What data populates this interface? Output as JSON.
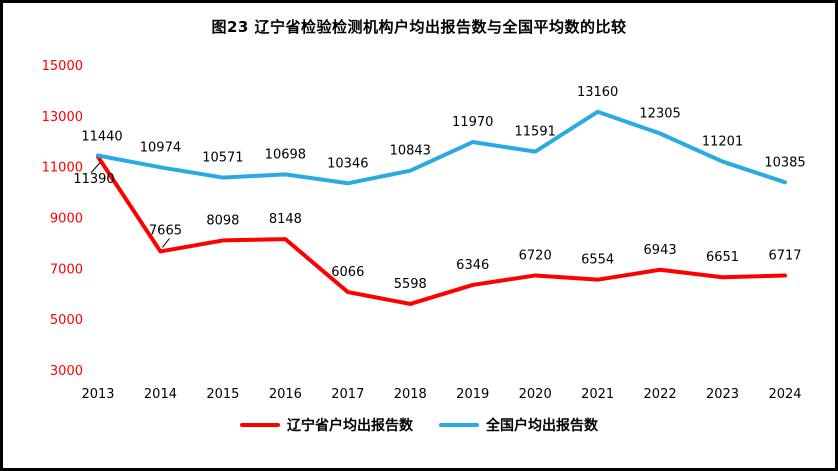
{
  "title": "图23 辽宁省检验检测机构户均出报告数与全国平均数的比较",
  "chart_data": {
    "type": "line",
    "categories": [
      "2013",
      "2014",
      "2015",
      "2016",
      "2017",
      "2018",
      "2019",
      "2020",
      "2021",
      "2022",
      "2023",
      "2024"
    ],
    "series": [
      {
        "name": "辽宁省户均出报告数",
        "color": "#FF0000",
        "values": [
          11390,
          7665,
          8098,
          8148,
          6066,
          5598,
          6346,
          6720,
          6554,
          6943,
          6651,
          6717
        ]
      },
      {
        "name": "全国户均出报告数",
        "color": "#29ABE2",
        "values": [
          11440,
          10974,
          10571,
          10698,
          10346,
          10843,
          11970,
          11591,
          13160,
          12305,
          11201,
          10385
        ]
      }
    ],
    "ylim": [
      3000,
      15000
    ],
    "yticks": [
      3000,
      5000,
      7000,
      9000,
      11000,
      13000,
      15000
    ],
    "ytick_color": "#FF0000",
    "grid": false,
    "legend_position": "bottom",
    "data_labels": true
  }
}
